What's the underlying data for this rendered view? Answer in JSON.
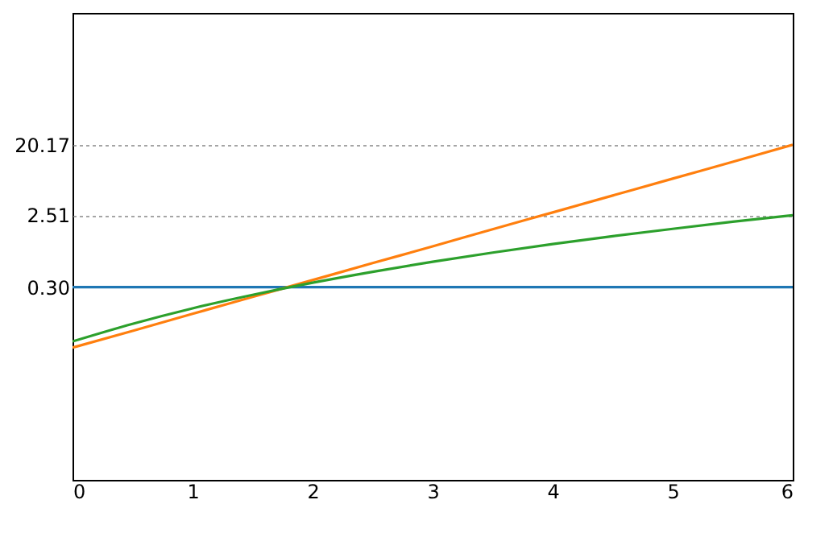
{
  "chart_data": {
    "type": "line",
    "x": [
      0,
      0.5,
      1,
      1.5,
      2,
      2.5,
      3,
      3.5,
      4,
      4.5,
      5,
      5.5,
      6
    ],
    "series": [
      {
        "color": "#1f77b4",
        "values": [
          0.3,
          0.3,
          0.3,
          0.3,
          0.3,
          0.3,
          0.3,
          0.3,
          0.3,
          0.3,
          0.3,
          0.3,
          0.3
        ]
      },
      {
        "color": "#ff7f0e",
        "values": [
          0.05,
          0.082,
          0.136,
          0.224,
          0.369,
          0.609,
          1.0,
          1.66,
          2.73,
          4.5,
          7.42,
          12.2,
          20.17
        ]
      },
      {
        "color": "#2ca02c",
        "values": [
          0.06,
          0.101,
          0.16,
          0.238,
          0.341,
          0.471,
          0.634,
          0.832,
          1.07,
          1.35,
          1.68,
          2.07,
          2.51
        ]
      }
    ],
    "log": "y",
    "xlim": [
      0,
      6
    ],
    "xticks": [
      0,
      1,
      2,
      3,
      4,
      5,
      6
    ],
    "ylim": [
      0.001,
      1000
    ],
    "yticks": [
      {
        "value": 0.3,
        "label": "0.30"
      },
      {
        "value": 2.51,
        "label": "2.51"
      },
      {
        "value": 20.17,
        "label": "20.17"
      }
    ],
    "grid": "y",
    "line_style": "solid"
  }
}
